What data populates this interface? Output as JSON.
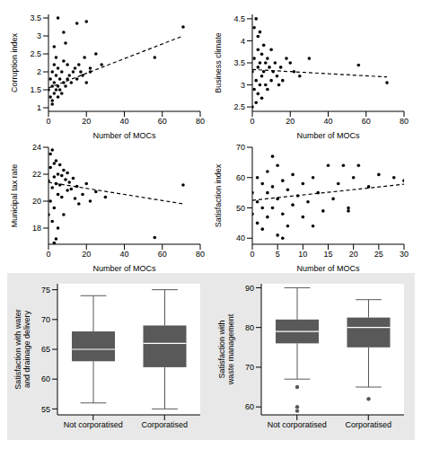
{
  "chart_data": [
    {
      "type": "scatter",
      "xlabel": "Number of MOCs",
      "ylabel": "Corruption index",
      "xlim": [
        0,
        80
      ],
      "ylim": [
        0.9,
        3.6
      ],
      "xticks": [
        0,
        20,
        40,
        60,
        80
      ],
      "yticks": [
        1,
        1.5,
        2,
        2.5,
        3,
        3.5
      ],
      "series": [
        {
          "type": "scatter",
          "marker": "circle",
          "color": "#000000",
          "x": [
            0,
            1,
            1,
            2,
            2,
            2,
            3,
            3,
            3,
            4,
            4,
            4,
            5,
            5,
            5,
            6,
            6,
            7,
            7,
            8,
            8,
            9,
            10,
            10,
            11,
            12,
            13,
            14,
            15,
            16,
            17,
            18,
            19,
            20,
            22,
            25,
            28,
            5,
            8,
            15,
            20,
            22,
            56,
            71,
            3,
            9,
            2
          ],
          "values": [
            1.5,
            1.3,
            1.8,
            1.2,
            1.6,
            2.0,
            1.4,
            1.7,
            2.2,
            1.5,
            1.9,
            2.4,
            1.3,
            1.6,
            2.1,
            1.8,
            1.5,
            1.4,
            2.0,
            1.7,
            2.3,
            1.6,
            1.8,
            2.2,
            1.9,
            1.7,
            2.0,
            2.1,
            1.8,
            2.2,
            2.0,
            1.9,
            2.4,
            1.7,
            2.1,
            2.5,
            2.2,
            3.5,
            3.1,
            3.35,
            3.4,
            2.0,
            2.4,
            3.25,
            2.7,
            2.8,
            1.1
          ]
        },
        {
          "type": "line",
          "line_style": "dashed",
          "color": "#000000",
          "x": [
            0,
            71
          ],
          "values": [
            1.55,
            3.0
          ]
        }
      ]
    },
    {
      "type": "scatter",
      "xlabel": "Number of MOCs",
      "ylabel": "Business climate",
      "xlim": [
        0,
        80
      ],
      "ylim": [
        2.4,
        4.6
      ],
      "xticks": [
        0,
        20,
        40,
        60,
        80
      ],
      "yticks": [
        2.5,
        3,
        3.5,
        4,
        4.5
      ],
      "series": [
        {
          "type": "scatter",
          "marker": "circle",
          "color": "#000000",
          "x": [
            0,
            1,
            1,
            2,
            2,
            2,
            3,
            3,
            3,
            4,
            4,
            4,
            5,
            5,
            5,
            6,
            6,
            7,
            7,
            8,
            8,
            9,
            10,
            10,
            11,
            12,
            13,
            14,
            15,
            16,
            18,
            20,
            22,
            25,
            30,
            56,
            71,
            1,
            3,
            0
          ],
          "values": [
            3.3,
            3.6,
            2.9,
            4.5,
            3.1,
            2.6,
            3.8,
            3.4,
            2.8,
            4.2,
            3.5,
            3.0,
            3.7,
            3.2,
            2.7,
            3.9,
            3.3,
            3.5,
            3.0,
            3.6,
            2.9,
            3.4,
            3.8,
            3.1,
            3.3,
            3.5,
            3.2,
            3.0,
            3.4,
            3.1,
            3.6,
            3.5,
            3.3,
            3.2,
            3.6,
            3.45,
            3.05,
            4.3,
            4.1,
            2.5
          ]
        },
        {
          "type": "line",
          "line_style": "dashed",
          "color": "#000000",
          "x": [
            0,
            71
          ],
          "values": [
            3.35,
            3.18
          ]
        }
      ]
    },
    {
      "type": "scatter",
      "xlabel": "Number of MOCs",
      "ylabel": "Municipal tax rate",
      "xlim": [
        0,
        80
      ],
      "ylim": [
        16.8,
        24
      ],
      "xticks": [
        0,
        20,
        40,
        60,
        80
      ],
      "yticks": [
        18,
        20,
        22,
        24
      ],
      "series": [
        {
          "type": "scatter",
          "marker": "circle",
          "color": "#000000",
          "x": [
            0,
            1,
            1,
            2,
            2,
            2,
            3,
            3,
            3,
            4,
            4,
            4,
            5,
            5,
            5,
            6,
            6,
            7,
            7,
            8,
            8,
            9,
            10,
            10,
            11,
            12,
            13,
            14,
            15,
            16,
            18,
            20,
            22,
            25,
            30,
            56,
            71,
            1,
            3,
            0
          ],
          "values": [
            21.5,
            22.5,
            20.0,
            23.8,
            21.0,
            18.5,
            22.8,
            21.8,
            19.5,
            23.0,
            21.3,
            17.2,
            22.0,
            20.5,
            18.0,
            22.7,
            21.2,
            21.9,
            20.3,
            22.3,
            19.0,
            21.6,
            22.1,
            20.8,
            21.4,
            20.9,
            21.7,
            20.2,
            21.1,
            19.8,
            20.5,
            21.3,
            20.0,
            20.7,
            20.3,
            17.3,
            21.2,
            23.5,
            16.9,
            19.0
          ]
        },
        {
          "type": "line",
          "line_style": "dashed",
          "color": "#000000",
          "x": [
            0,
            71
          ],
          "values": [
            21.4,
            19.8
          ]
        }
      ]
    },
    {
      "type": "scatter",
      "xlabel": "Number of MOCs",
      "ylabel": "Satisfaction index",
      "xlim": [
        0,
        30
      ],
      "ylim": [
        38,
        70
      ],
      "xticks": [
        0,
        5,
        10,
        15,
        20,
        25,
        30
      ],
      "yticks": [
        40,
        50,
        60,
        70
      ],
      "series": [
        {
          "type": "scatter",
          "marker": "circle",
          "color": "#000000",
          "x": [
            0,
            0,
            1,
            1,
            1,
            2,
            2,
            2,
            3,
            3,
            3,
            4,
            4,
            4,
            5,
            5,
            5,
            6,
            6,
            7,
            7,
            8,
            8,
            9,
            10,
            10,
            11,
            12,
            13,
            14,
            15,
            16,
            17,
            18,
            19,
            20,
            21,
            23,
            25,
            28,
            30,
            19,
            12,
            6
          ],
          "values": [
            55,
            48,
            60,
            52,
            45,
            58,
            50,
            43,
            62,
            55,
            47,
            67,
            57,
            50,
            64,
            53,
            41,
            59,
            48,
            56,
            44,
            61,
            51,
            54,
            58,
            47,
            52,
            60,
            55,
            49,
            64,
            53,
            58,
            64,
            49,
            60,
            64,
            57,
            61,
            60,
            59,
            50,
            44,
            40
          ]
        },
        {
          "type": "line",
          "line_style": "dashed",
          "color": "#000000",
          "x": [
            0,
            30
          ],
          "values": [
            52.5,
            57.8
          ]
        }
      ]
    },
    {
      "type": "box",
      "ylabel": "Satisfaction with water and drainage delivery",
      "ylim": [
        54,
        76
      ],
      "yticks": [
        55,
        60,
        65,
        70,
        75
      ],
      "color": "#595959",
      "categories": [
        "Not corporatised",
        "Corporatised"
      ],
      "stats": [
        {
          "min": 56,
          "q1": 63,
          "median": 65,
          "q3": 68,
          "max": 74,
          "outliers": []
        },
        {
          "min": 55,
          "q1": 62,
          "median": 66,
          "q3": 69,
          "max": 75,
          "outliers": []
        }
      ]
    },
    {
      "type": "box",
      "ylabel": "Satisfaction with waste management",
      "ylim": [
        58,
        91
      ],
      "yticks": [
        60,
        70,
        80,
        90
      ],
      "color": "#595959",
      "categories": [
        "Not corporatised",
        "Corporatised"
      ],
      "stats": [
        {
          "min": 67,
          "q1": 76,
          "median": 79,
          "q3": 82,
          "max": 90,
          "outliers": [
            65,
            60,
            59
          ]
        },
        {
          "min": 65,
          "q1": 75,
          "median": 80,
          "q3": 82.5,
          "max": 87,
          "outliers": [
            62
          ]
        }
      ]
    }
  ]
}
